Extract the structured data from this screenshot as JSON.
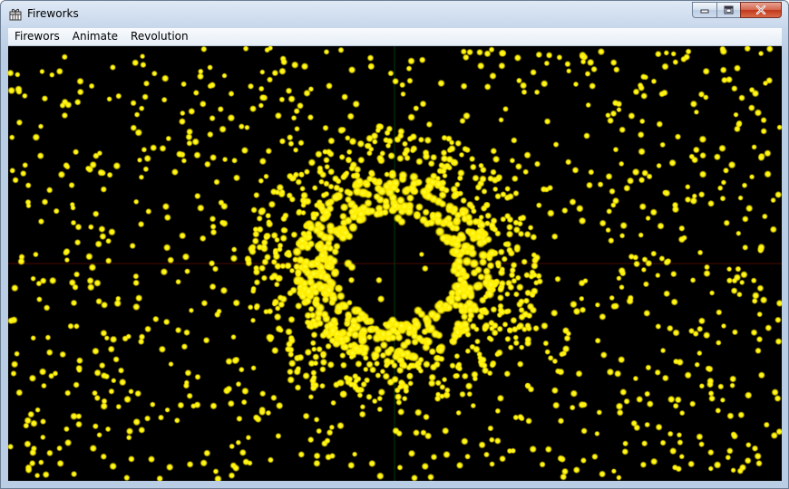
{
  "window": {
    "title": "Fireworks",
    "app_icon": "gift-box-icon",
    "caption_buttons": [
      "minimize-icon",
      "maximize-icon",
      "close-icon"
    ]
  },
  "menu": {
    "items": [
      {
        "label": "Firewors"
      },
      {
        "label": "Animate"
      },
      {
        "label": "Revolution"
      }
    ]
  },
  "canvas": {
    "background": "#000000",
    "particle_color": "#ffff00",
    "h_axis_color": "#4a0a00",
    "v_axis_color": "#003a10"
  }
}
